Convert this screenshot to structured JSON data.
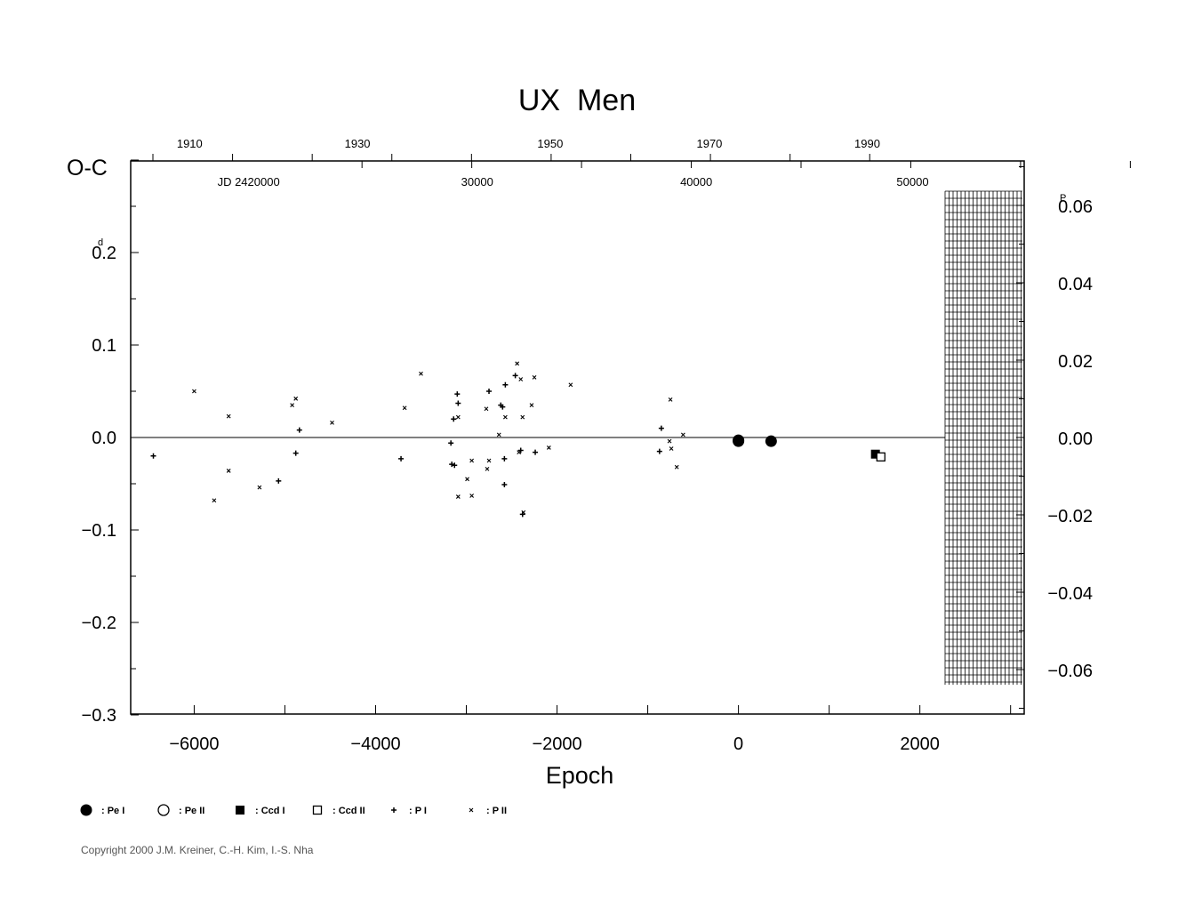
{
  "chart_data": {
    "type": "scatter",
    "title": "UX  Men",
    "xlabel": "Epoch",
    "ylabel": "O-C",
    "y_unit_left": "d",
    "y_unit_right": "P",
    "xlim": [
      -6700,
      3150
    ],
    "ylim": [
      -0.3,
      0.3
    ],
    "x_ticks": [
      -6000,
      -4000,
      -2000,
      0,
      2000
    ],
    "x_tick_labels": [
      "−6000",
      "−4000",
      "−2000",
      "0",
      "2000"
    ],
    "y_ticks": [
      0.2,
      0.1,
      0.0,
      -0.1,
      -0.2,
      -0.3
    ],
    "y_tick_labels": [
      "0.2",
      "0.1",
      "0.0",
      "−0.1",
      "−0.2",
      "−0.3"
    ],
    "right_ticks": [
      0.06,
      0.04,
      0.02,
      0.0,
      -0.02,
      -0.04,
      -0.06
    ],
    "right_tick_labels": [
      "0.06",
      "0.04",
      "0.02",
      "0.00",
      "−0.02",
      "−0.04",
      "−0.06"
    ],
    "top_years": [
      {
        "label": "1910",
        "x": -6050
      },
      {
        "label": "1930",
        "x": -4200
      },
      {
        "label": "1950",
        "x": -2075
      },
      {
        "label": "1970",
        "x": -320
      },
      {
        "label": "1990",
        "x": 1420
      }
    ],
    "top_jd": [
      {
        "label": "JD  2420000",
        "x": -5400
      },
      {
        "label": "30000",
        "x": -2880
      },
      {
        "label": "40000",
        "x": -465
      },
      {
        "label": "50000",
        "x": 1920
      }
    ],
    "legend": [
      {
        "symbol": "filled-circle",
        "label": ": Pe I"
      },
      {
        "symbol": "open-circle",
        "label": ": Pe II"
      },
      {
        "symbol": "filled-square",
        "label": ": Ccd I"
      },
      {
        "symbol": "open-square",
        "label": ": Ccd II"
      },
      {
        "symbol": "plus",
        "label": ": P I"
      },
      {
        "symbol": "cross",
        "label": ": P II"
      }
    ],
    "series": [
      {
        "name": "Pe I",
        "symbol": "filled-circle",
        "points": [
          [
            0,
            -0.004
          ],
          [
            0,
            -0.003
          ],
          [
            360,
            -0.004
          ]
        ]
      },
      {
        "name": "Ccd I",
        "symbol": "filled-square",
        "points": [
          [
            1510,
            -0.018
          ]
        ]
      },
      {
        "name": "Ccd II",
        "symbol": "open-square",
        "points": [
          [
            1570,
            -0.021
          ]
        ]
      },
      {
        "name": "P I",
        "symbol": "plus",
        "points": [
          [
            -6450,
            -0.02
          ],
          [
            -4840,
            0.008
          ],
          [
            -4880,
            -0.017
          ],
          [
            -5070,
            -0.047
          ],
          [
            -3720,
            -0.023
          ],
          [
            -3140,
            0.02
          ],
          [
            -3170,
            -0.006
          ],
          [
            -3160,
            -0.029
          ],
          [
            -3130,
            -0.03
          ],
          [
            -3100,
            0.047
          ],
          [
            -3090,
            0.037
          ],
          [
            -2750,
            0.05
          ],
          [
            -2620,
            0.035
          ],
          [
            -2600,
            0.033
          ],
          [
            -2570,
            0.057
          ],
          [
            -2460,
            0.067
          ],
          [
            -2580,
            -0.023
          ],
          [
            -2580,
            -0.051
          ],
          [
            -2400,
            -0.014
          ],
          [
            -2380,
            -0.083
          ],
          [
            -2240,
            -0.016
          ],
          [
            -850,
            0.01
          ],
          [
            -870,
            -0.015
          ]
        ]
      },
      {
        "name": "P II",
        "symbol": "cross",
        "points": [
          [
            -6000,
            0.05
          ],
          [
            -5620,
            0.023
          ],
          [
            -5780,
            -0.068
          ],
          [
            -5620,
            -0.036
          ],
          [
            -5280,
            -0.054
          ],
          [
            -4920,
            0.035
          ],
          [
            -4880,
            0.042
          ],
          [
            -4480,
            0.016
          ],
          [
            -3500,
            0.069
          ],
          [
            -3680,
            0.032
          ],
          [
            -3090,
            0.022
          ],
          [
            -3090,
            -0.064
          ],
          [
            -2990,
            -0.045
          ],
          [
            -2940,
            -0.025
          ],
          [
            -2940,
            -0.063
          ],
          [
            -2780,
            0.031
          ],
          [
            -2750,
            -0.025
          ],
          [
            -2770,
            -0.034
          ],
          [
            -2640,
            0.003
          ],
          [
            -2570,
            0.022
          ],
          [
            -2440,
            0.08
          ],
          [
            -2400,
            0.063
          ],
          [
            -2380,
            0.022
          ],
          [
            -2420,
            -0.016
          ],
          [
            -2370,
            -0.081
          ],
          [
            -2280,
            0.035
          ],
          [
            -2250,
            0.065
          ],
          [
            -2090,
            -0.011
          ],
          [
            -1850,
            0.057
          ],
          [
            -750,
            0.041
          ],
          [
            -760,
            -0.004
          ],
          [
            -740,
            -0.012
          ],
          [
            -680,
            -0.032
          ],
          [
            -610,
            0.003
          ]
        ]
      }
    ]
  },
  "copyright": "Copyright 2000 J.M. Kreiner, C.-H. Kim, I.-S. Nha"
}
